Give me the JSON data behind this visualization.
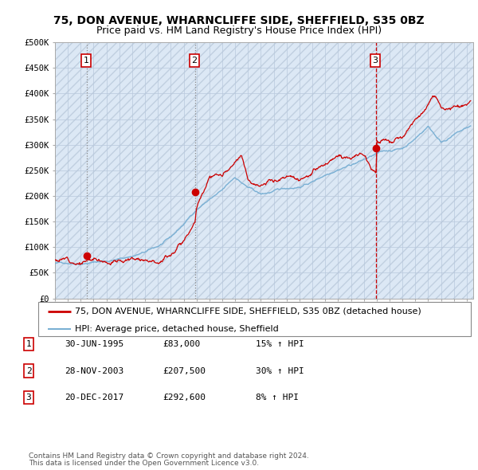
{
  "title": "75, DON AVENUE, WHARNCLIFFE SIDE, SHEFFIELD, S35 0BZ",
  "subtitle": "Price paid vs. HM Land Registry's House Price Index (HPI)",
  "ylim": [
    0,
    500000
  ],
  "yticks": [
    0,
    50000,
    100000,
    150000,
    200000,
    250000,
    300000,
    350000,
    400000,
    450000,
    500000
  ],
  "ytick_labels": [
    "£0",
    "£50K",
    "£100K",
    "£150K",
    "£200K",
    "£250K",
    "£300K",
    "£350K",
    "£400K",
    "£450K",
    "£500K"
  ],
  "xlim_start": 1993.0,
  "xlim_end": 2025.5,
  "sale_color": "#cc0000",
  "hpi_color": "#7ab0d4",
  "vline1_color": "#888888",
  "vline2_color": "#888888",
  "vline3_color": "#cc0000",
  "background_color": "#ffffff",
  "plot_bg_color": "#dce8f5",
  "hatch_color": "#c0cfe0",
  "legend_line1": "75, DON AVENUE, WHARNCLIFFE SIDE, SHEFFIELD, S35 0BZ (detached house)",
  "legend_line2": "HPI: Average price, detached house, Sheffield",
  "sale_dates_year": [
    1995.5,
    2003.92,
    2017.97
  ],
  "sale_prices": [
    83000,
    207500,
    292600
  ],
  "sale_labels": [
    "1",
    "2",
    "3"
  ],
  "footer1": "Contains HM Land Registry data © Crown copyright and database right 2024.",
  "footer2": "This data is licensed under the Open Government Licence v3.0.",
  "table_rows": [
    [
      "1",
      "30-JUN-1995",
      "£83,000",
      "15% ↑ HPI"
    ],
    [
      "2",
      "28-NOV-2003",
      "£207,500",
      "30% ↑ HPI"
    ],
    [
      "3",
      "20-DEC-2017",
      "£292,600",
      "8% ↑ HPI"
    ]
  ],
  "title_fontsize": 10,
  "subtitle_fontsize": 9,
  "tick_fontsize": 7.5,
  "legend_fontsize": 8,
  "table_fontsize": 8,
  "footer_fontsize": 6.5
}
